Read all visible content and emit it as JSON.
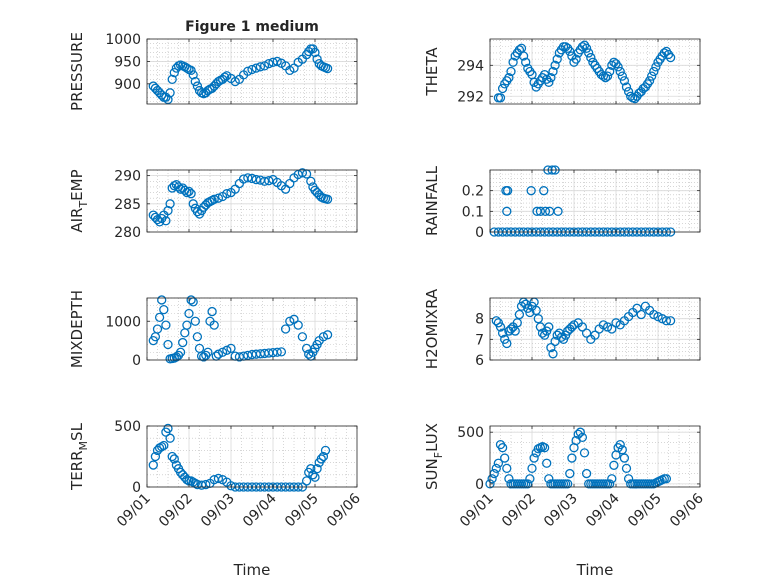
{
  "figure": {
    "title": "Figure 1 medium",
    "x_axis_label": "Time"
  },
  "chart_data": [
    {
      "type": "scatter",
      "ylabel": "PRESSURE",
      "x_ticks": [
        "09/01",
        "09/02",
        "09/03",
        "09/04",
        "09/05",
        "09/06"
      ],
      "x_tick_labels_visible": false,
      "ylim": [
        855,
        1000
      ],
      "y_ticks": [
        900,
        950,
        1000
      ],
      "grid": true,
      "marker_color": "#0072BD",
      "x": [
        0.15,
        0.2,
        0.25,
        0.3,
        0.35,
        0.4,
        0.45,
        0.5,
        0.55,
        0.6,
        0.65,
        0.7,
        0.75,
        0.8,
        0.85,
        0.9,
        0.95,
        1.0,
        1.05,
        1.1,
        1.15,
        1.2,
        1.25,
        1.3,
        1.35,
        1.4,
        1.45,
        1.5,
        1.55,
        1.6,
        1.65,
        1.7,
        1.75,
        1.8,
        1.85,
        1.9,
        2.0,
        2.1,
        2.2,
        2.3,
        2.4,
        2.5,
        2.6,
        2.7,
        2.8,
        2.9,
        3.0,
        3.1,
        3.2,
        3.3,
        3.4,
        3.5,
        3.6,
        3.7,
        3.8,
        3.85,
        3.9,
        3.95,
        4.0,
        4.05,
        4.1,
        4.15,
        4.2,
        4.25,
        4.3
      ],
      "y": [
        895,
        890,
        885,
        880,
        875,
        870,
        870,
        865,
        880,
        910,
        925,
        935,
        940,
        942,
        940,
        938,
        935,
        932,
        930,
        920,
        905,
        895,
        885,
        880,
        878,
        880,
        885,
        888,
        890,
        895,
        900,
        905,
        908,
        910,
        915,
        918,
        912,
        905,
        910,
        920,
        928,
        932,
        935,
        938,
        940,
        945,
        948,
        950,
        946,
        940,
        930,
        935,
        948,
        955,
        965,
        972,
        978,
        978,
        970,
        955,
        945,
        940,
        938,
        936,
        934
      ]
    },
    {
      "type": "scatter",
      "ylabel": "THETA",
      "x_ticks": [
        "09/01",
        "09/02",
        "09/03",
        "09/04",
        "09/05",
        "09/06"
      ],
      "x_tick_labels_visible": false,
      "ylim": [
        291.5,
        295.7
      ],
      "y_ticks": [
        292,
        294
      ],
      "grid": true,
      "marker_color": "#0072BD",
      "x": [
        0.2,
        0.25,
        0.3,
        0.35,
        0.4,
        0.45,
        0.5,
        0.55,
        0.6,
        0.65,
        0.7,
        0.75,
        0.8,
        0.85,
        0.9,
        0.95,
        1.0,
        1.05,
        1.1,
        1.15,
        1.2,
        1.25,
        1.3,
        1.35,
        1.4,
        1.45,
        1.5,
        1.55,
        1.6,
        1.65,
        1.7,
        1.75,
        1.8,
        1.85,
        1.9,
        1.95,
        2.0,
        2.05,
        2.1,
        2.15,
        2.2,
        2.25,
        2.3,
        2.35,
        2.4,
        2.45,
        2.5,
        2.55,
        2.6,
        2.65,
        2.7,
        2.75,
        2.8,
        2.85,
        2.9,
        2.95,
        3.0,
        3.05,
        3.1,
        3.15,
        3.2,
        3.25,
        3.3,
        3.35,
        3.4,
        3.45,
        3.5,
        3.55,
        3.6,
        3.65,
        3.7,
        3.75,
        3.8,
        3.85,
        3.9,
        3.95,
        4.0,
        4.05,
        4.1,
        4.15,
        4.2,
        4.25,
        4.3
      ],
      "y": [
        291.9,
        291.9,
        292.5,
        292.8,
        293.0,
        293.2,
        293.6,
        294.2,
        294.6,
        294.8,
        295.0,
        295.1,
        294.6,
        294.2,
        293.8,
        293.6,
        293.4,
        292.9,
        292.6,
        292.8,
        293.0,
        293.2,
        293.4,
        293.1,
        292.9,
        293.2,
        293.6,
        294.0,
        294.4,
        294.8,
        295.0,
        295.2,
        295.2,
        295.1,
        294.9,
        294.6,
        294.2,
        294.4,
        294.8,
        295.0,
        295.2,
        295.3,
        295.1,
        294.8,
        294.5,
        294.2,
        294.0,
        293.8,
        293.6,
        293.4,
        293.3,
        293.2,
        293.3,
        293.6,
        294.0,
        294.2,
        294.1,
        293.9,
        293.6,
        293.3,
        293.0,
        292.6,
        292.3,
        292.0,
        291.9,
        291.85,
        292.0,
        292.2,
        292.3,
        292.5,
        292.6,
        292.8,
        293.0,
        293.3,
        293.6,
        293.9,
        294.2,
        294.4,
        294.6,
        294.8,
        294.9,
        294.7,
        294.5
      ]
    },
    {
      "type": "scatter",
      "ylabel": "AIR_TEMP",
      "x_ticks": [
        "09/01",
        "09/02",
        "09/03",
        "09/04",
        "09/05",
        "09/06"
      ],
      "x_tick_labels_visible": false,
      "ylim": [
        280,
        291
      ],
      "y_ticks": [
        280,
        285,
        290
      ],
      "grid": true,
      "marker_color": "#0072BD",
      "x": [
        0.15,
        0.2,
        0.25,
        0.3,
        0.35,
        0.4,
        0.45,
        0.5,
        0.55,
        0.6,
        0.65,
        0.7,
        0.75,
        0.8,
        0.85,
        0.9,
        0.95,
        1.0,
        1.05,
        1.1,
        1.15,
        1.2,
        1.25,
        1.3,
        1.35,
        1.4,
        1.45,
        1.5,
        1.55,
        1.6,
        1.7,
        1.8,
        1.9,
        2.0,
        2.1,
        2.2,
        2.3,
        2.4,
        2.5,
        2.6,
        2.7,
        2.8,
        2.9,
        3.0,
        3.1,
        3.2,
        3.3,
        3.4,
        3.5,
        3.6,
        3.7,
        3.8,
        3.9,
        3.95,
        4.0,
        4.05,
        4.1,
        4.15,
        4.2,
        4.25,
        4.3
      ],
      "y": [
        283,
        282.6,
        282.2,
        281.8,
        282.4,
        283.0,
        282.0,
        283.8,
        285.0,
        287.8,
        288.2,
        288.4,
        288.0,
        287.6,
        287.8,
        287.4,
        287.0,
        287.2,
        286.8,
        285.0,
        284.2,
        283.6,
        283.2,
        283.8,
        284.4,
        284.8,
        285.2,
        285.4,
        285.6,
        285.8,
        286.0,
        286.3,
        286.8,
        287.0,
        287.6,
        288.6,
        289.4,
        289.6,
        289.5,
        289.3,
        289.2,
        289.0,
        289.1,
        289.3,
        288.8,
        288.2,
        287.6,
        288.6,
        289.6,
        290.2,
        290.5,
        290.3,
        289.0,
        288.0,
        287.4,
        287.0,
        286.6,
        286.2,
        286.0,
        285.9,
        285.8
      ]
    },
    {
      "type": "scatter",
      "ylabel": "RAINFALL",
      "x_ticks": [
        "09/01",
        "09/02",
        "09/03",
        "09/04",
        "09/05",
        "09/06"
      ],
      "x_tick_labels_visible": false,
      "ylim": [
        0,
        0.3
      ],
      "y_ticks": [
        0,
        0.1,
        0.2
      ],
      "grid": true,
      "marker_color": "#0072BD",
      "x": [
        0.1,
        0.2,
        0.3,
        0.4,
        0.5,
        0.6,
        0.7,
        0.8,
        0.9,
        1.0,
        1.1,
        1.2,
        1.3,
        1.4,
        1.5,
        1.6,
        1.7,
        1.8,
        1.9,
        2.0,
        2.1,
        2.2,
        2.3,
        2.4,
        2.5,
        2.6,
        2.7,
        2.8,
        2.9,
        3.0,
        3.1,
        3.2,
        3.3,
        3.4,
        3.5,
        3.6,
        3.7,
        3.8,
        3.9,
        4.0,
        4.1,
        4.2,
        4.3,
        0.38,
        0.42,
        0.4,
        0.98,
        1.12,
        1.2,
        1.28,
        1.32,
        1.38,
        1.42,
        1.48,
        1.55,
        1.62
      ],
      "y": [
        0,
        0,
        0,
        0,
        0,
        0,
        0,
        0,
        0,
        0,
        0,
        0,
        0,
        0,
        0,
        0,
        0,
        0,
        0,
        0,
        0,
        0,
        0,
        0,
        0,
        0,
        0,
        0,
        0,
        0,
        0,
        0,
        0,
        0,
        0,
        0,
        0,
        0,
        0,
        0,
        0,
        0,
        0,
        0.2,
        0.2,
        0.1,
        0.2,
        0.1,
        0.1,
        0.2,
        0.1,
        0.3,
        0.1,
        0.3,
        0.3,
        0.1
      ]
    },
    {
      "type": "scatter",
      "ylabel": "MIXDEPTH",
      "x_ticks": [
        "09/01",
        "09/02",
        "09/03",
        "09/04",
        "09/05",
        "09/06"
      ],
      "x_tick_labels_visible": false,
      "ylim": [
        0,
        1600
      ],
      "y_ticks": [
        0,
        1000
      ],
      "grid": true,
      "marker_color": "#0072BD",
      "x": [
        0.15,
        0.2,
        0.25,
        0.3,
        0.35,
        0.4,
        0.45,
        0.5,
        0.55,
        0.6,
        0.65,
        0.7,
        0.75,
        0.8,
        0.85,
        0.9,
        0.95,
        1.0,
        1.05,
        1.1,
        1.15,
        1.2,
        1.25,
        1.3,
        1.35,
        1.4,
        1.45,
        1.5,
        1.55,
        1.6,
        1.65,
        1.7,
        1.8,
        1.9,
        2.0,
        2.1,
        2.2,
        2.3,
        2.4,
        2.5,
        2.6,
        2.7,
        2.8,
        2.9,
        3.0,
        3.1,
        3.2,
        3.3,
        3.4,
        3.5,
        3.6,
        3.7,
        3.8,
        3.85,
        3.9,
        3.95,
        4.0,
        4.05,
        4.1,
        4.2,
        4.3
      ],
      "y": [
        500,
        600,
        800,
        1100,
        1550,
        1300,
        900,
        400,
        30,
        40,
        50,
        80,
        120,
        200,
        450,
        700,
        900,
        1200,
        1550,
        1500,
        1000,
        600,
        300,
        100,
        80,
        120,
        200,
        1000,
        1250,
        900,
        100,
        150,
        200,
        250,
        300,
        100,
        80,
        100,
        120,
        140,
        150,
        160,
        170,
        180,
        190,
        200,
        210,
        800,
        1000,
        1050,
        900,
        600,
        300,
        150,
        100,
        200,
        300,
        400,
        500,
        600,
        650
      ]
    },
    {
      "type": "scatter",
      "ylabel": "H2OMIXRA",
      "x_ticks": [
        "09/01",
        "09/02",
        "09/03",
        "09/04",
        "09/05",
        "09/06"
      ],
      "x_tick_labels_visible": false,
      "ylim": [
        6,
        9
      ],
      "y_ticks": [
        6,
        7,
        8
      ],
      "grid": true,
      "marker_color": "#0072BD",
      "x": [
        0.15,
        0.2,
        0.25,
        0.3,
        0.35,
        0.4,
        0.45,
        0.5,
        0.55,
        0.6,
        0.65,
        0.7,
        0.75,
        0.8,
        0.85,
        0.9,
        0.95,
        1.0,
        1.05,
        1.1,
        1.15,
        1.2,
        1.25,
        1.3,
        1.35,
        1.4,
        1.45,
        1.5,
        1.55,
        1.6,
        1.65,
        1.7,
        1.75,
        1.8,
        1.85,
        1.9,
        1.95,
        2.0,
        2.1,
        2.2,
        2.3,
        2.4,
        2.5,
        2.6,
        2.7,
        2.8,
        2.9,
        3.0,
        3.1,
        3.2,
        3.3,
        3.4,
        3.5,
        3.6,
        3.7,
        3.8,
        3.9,
        4.0,
        4.1,
        4.2,
        4.3
      ],
      "y": [
        7.9,
        7.8,
        7.6,
        7.3,
        7.0,
        6.8,
        7.4,
        7.5,
        7.6,
        7.4,
        7.8,
        8.2,
        8.6,
        8.8,
        8.7,
        8.5,
        8.3,
        8.6,
        8.8,
        8.4,
        8.0,
        7.6,
        7.3,
        7.2,
        7.4,
        7.6,
        6.6,
        6.3,
        6.9,
        7.2,
        7.3,
        7.1,
        7.0,
        7.2,
        7.4,
        7.5,
        7.6,
        7.7,
        7.8,
        7.6,
        7.3,
        7.0,
        7.2,
        7.5,
        7.7,
        7.6,
        7.5,
        7.8,
        7.7,
        7.9,
        8.1,
        8.3,
        8.5,
        8.2,
        8.6,
        8.4,
        8.2,
        8.1,
        8.0,
        7.9,
        7.9
      ]
    },
    {
      "type": "scatter",
      "ylabel": "TERR_MSL",
      "x_ticks": [
        "09/01",
        "09/02",
        "09/03",
        "09/04",
        "09/05",
        "09/06"
      ],
      "x_tick_labels_visible": true,
      "ylim": [
        0,
        500
      ],
      "y_ticks": [
        0,
        500
      ],
      "grid": true,
      "marker_color": "#0072BD",
      "x": [
        0.15,
        0.2,
        0.25,
        0.3,
        0.35,
        0.4,
        0.45,
        0.5,
        0.55,
        0.6,
        0.65,
        0.7,
        0.75,
        0.8,
        0.85,
        0.9,
        0.95,
        1.0,
        1.05,
        1.1,
        1.15,
        1.2,
        1.3,
        1.4,
        1.5,
        1.6,
        1.7,
        1.8,
        1.9,
        2.0,
        2.1,
        2.2,
        2.3,
        2.4,
        2.5,
        2.6,
        2.7,
        2.8,
        2.9,
        3.0,
        3.1,
        3.2,
        3.3,
        3.4,
        3.5,
        3.6,
        3.7,
        3.8,
        3.85,
        3.9,
        3.95,
        4.0,
        4.05,
        4.1,
        4.15,
        4.2,
        4.25
      ],
      "y": [
        180,
        250,
        300,
        320,
        330,
        340,
        450,
        480,
        400,
        250,
        230,
        180,
        150,
        120,
        100,
        80,
        60,
        50,
        50,
        40,
        30,
        20,
        15,
        20,
        30,
        60,
        70,
        60,
        40,
        10,
        0,
        0,
        0,
        0,
        0,
        0,
        0,
        0,
        0,
        0,
        0,
        0,
        0,
        0,
        0,
        0,
        0,
        50,
        120,
        150,
        100,
        80,
        150,
        200,
        230,
        250,
        300
      ]
    },
    {
      "type": "scatter",
      "ylabel": "SUN_FLUX",
      "x_ticks": [
        "09/01",
        "09/02",
        "09/03",
        "09/04",
        "09/05",
        "09/06"
      ],
      "x_tick_labels_visible": true,
      "ylim": [
        -30,
        560
      ],
      "y_ticks": [
        0,
        500
      ],
      "grid": true,
      "marker_color": "#0072BD",
      "x": [
        0.0,
        0.05,
        0.1,
        0.15,
        0.2,
        0.25,
        0.3,
        0.35,
        0.4,
        0.45,
        0.5,
        0.55,
        0.6,
        0.65,
        0.7,
        0.75,
        0.8,
        0.85,
        0.9,
        0.95,
        1.0,
        1.05,
        1.1,
        1.15,
        1.2,
        1.25,
        1.3,
        1.35,
        1.4,
        1.45,
        1.5,
        1.55,
        1.6,
        1.65,
        1.7,
        1.75,
        1.8,
        1.85,
        1.9,
        1.95,
        2.0,
        2.05,
        2.1,
        2.15,
        2.2,
        2.25,
        2.3,
        2.35,
        2.4,
        2.45,
        2.5,
        2.55,
        2.6,
        2.65,
        2.7,
        2.75,
        2.8,
        2.85,
        2.9,
        2.95,
        3.0,
        3.05,
        3.1,
        3.15,
        3.2,
        3.25,
        3.3,
        3.35,
        3.4,
        3.45,
        3.5,
        3.55,
        3.6,
        3.65,
        3.7,
        3.75,
        3.8,
        3.85,
        3.9,
        3.95,
        4.0,
        4.05,
        4.1,
        4.15,
        4.2
      ],
      "y": [
        0,
        50,
        100,
        150,
        200,
        380,
        350,
        250,
        150,
        50,
        0,
        0,
        0,
        0,
        0,
        0,
        0,
        0,
        0,
        50,
        150,
        250,
        300,
        340,
        350,
        360,
        350,
        200,
        50,
        0,
        0,
        0,
        0,
        0,
        0,
        0,
        0,
        0,
        100,
        250,
        350,
        420,
        480,
        500,
        450,
        300,
        100,
        0,
        0,
        0,
        0,
        0,
        0,
        0,
        0,
        0,
        0,
        0,
        50,
        180,
        280,
        350,
        380,
        330,
        250,
        150,
        50,
        0,
        0,
        0,
        0,
        0,
        0,
        0,
        0,
        0,
        0,
        0,
        0,
        10,
        20,
        30,
        40,
        50,
        50
      ]
    }
  ]
}
